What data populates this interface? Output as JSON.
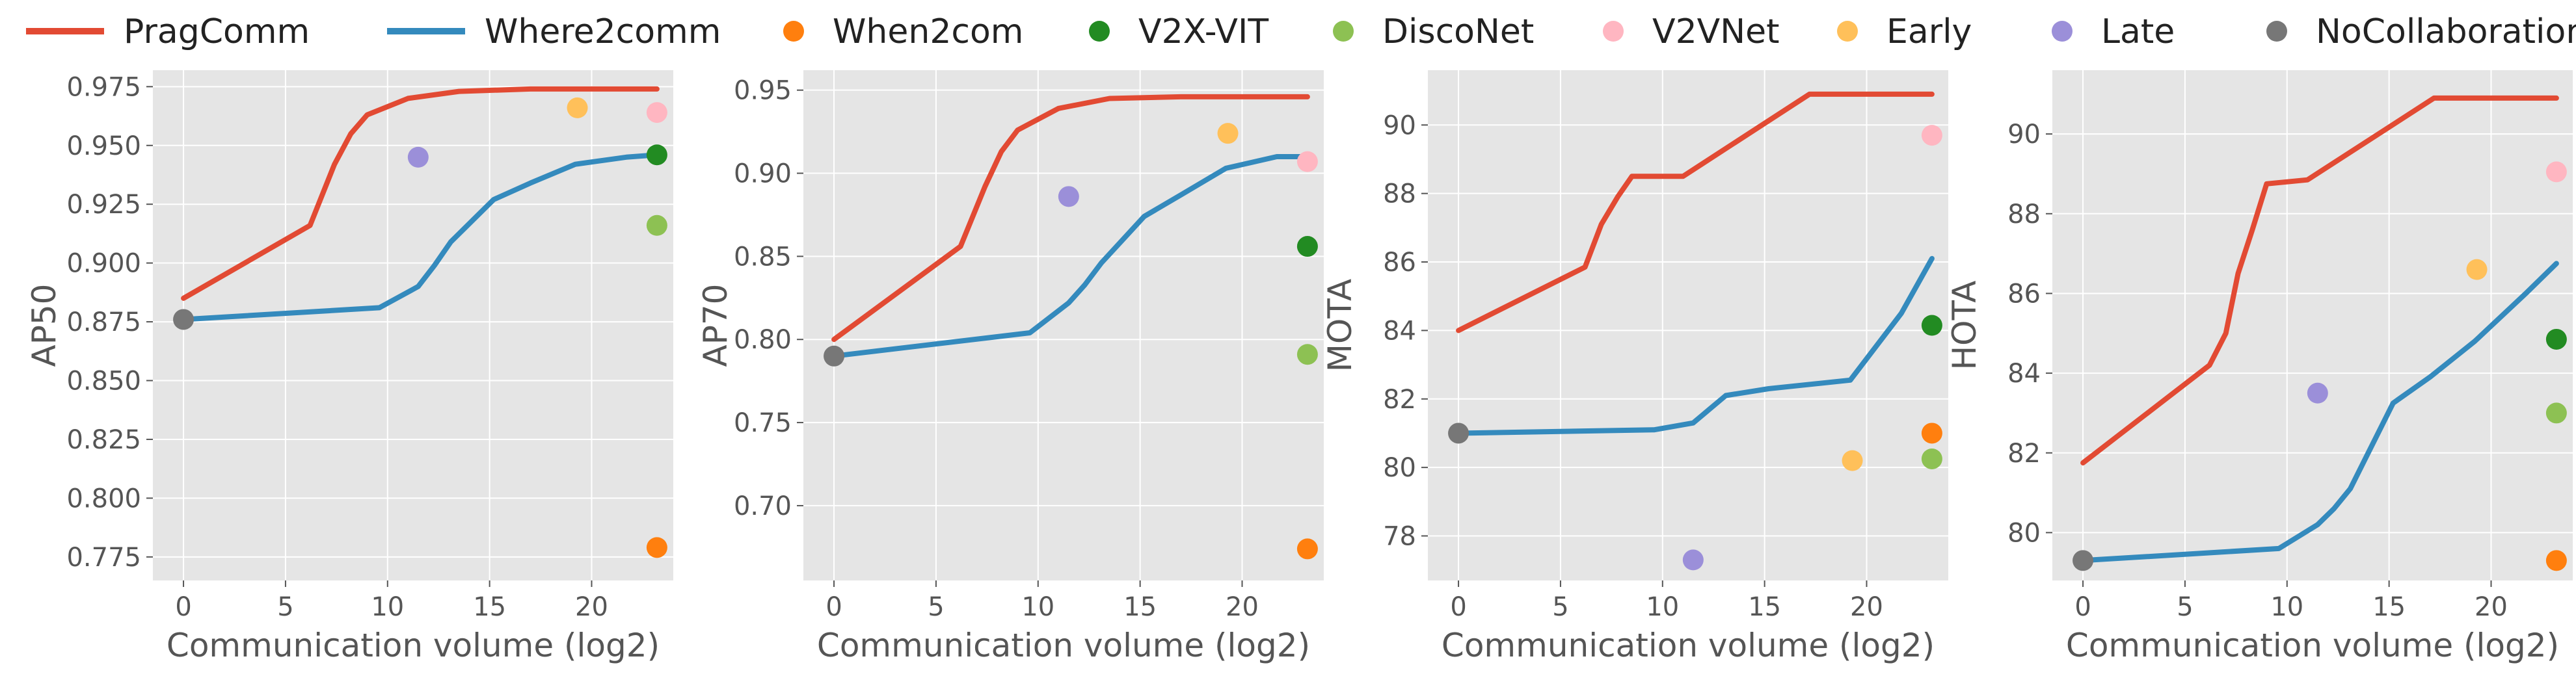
{
  "legend": {
    "placement": "top-center",
    "entries": [
      {
        "name": "PragComm",
        "marker": "line",
        "color": "#E24A33"
      },
      {
        "name": "Where2comm",
        "marker": "line",
        "color": "#348ABD"
      },
      {
        "name": "When2com",
        "marker": "dot",
        "color": "#FF7F0E"
      },
      {
        "name": "V2X-VIT",
        "marker": "dot",
        "color": "#228B22"
      },
      {
        "name": "DiscoNet",
        "marker": "dot",
        "color": "#8DC153"
      },
      {
        "name": "V2VNet",
        "marker": "dot",
        "color": "#FFB6C1"
      },
      {
        "name": "Early",
        "marker": "dot",
        "color": "#FFC05A"
      },
      {
        "name": "Late",
        "marker": "dot",
        "color": "#9B8FD9"
      },
      {
        "name": "NoCollaboration",
        "marker": "dot",
        "color": "#777777"
      }
    ]
  },
  "chart_data": [
    {
      "type": "line",
      "xlabel": "Communication volume (log2)",
      "ylabel": "AP50",
      "xlim": [
        -1.5,
        24
      ],
      "ylim": [
        0.765,
        0.982
      ],
      "xticks": [
        0,
        5,
        10,
        15,
        20
      ],
      "yticks": [
        0.775,
        0.8,
        0.825,
        0.85,
        0.875,
        0.9,
        0.925,
        0.95,
        0.975
      ],
      "ytick_labels": [
        "0.775",
        "0.800",
        "0.825",
        "0.850",
        "0.875",
        "0.900",
        "0.925",
        "0.950",
        "0.975"
      ],
      "grid": true,
      "series": [
        {
          "name": "PragComm",
          "color": "#E24A33",
          "x": [
            0,
            6.2,
            7.4,
            8.2,
            9.0,
            11.0,
            13.5,
            17.0,
            20.0,
            23.2
          ],
          "y": [
            0.885,
            0.916,
            0.942,
            0.955,
            0.963,
            0.97,
            0.973,
            0.974,
            0.974,
            0.974
          ]
        },
        {
          "name": "Where2comm",
          "color": "#348ABD",
          "x": [
            0,
            9.6,
            11.5,
            12.3,
            13.1,
            15.2,
            17.0,
            19.2,
            21.7,
            23.2
          ],
          "y": [
            0.876,
            0.881,
            0.89,
            0.899,
            0.909,
            0.927,
            0.934,
            0.942,
            0.945,
            0.946
          ]
        }
      ],
      "points": [
        {
          "name": "When2com",
          "color": "#FF7F0E",
          "x": 23.2,
          "y": 0.779
        },
        {
          "name": "V2X-VIT",
          "color": "#228B22",
          "x": 23.2,
          "y": 0.946
        },
        {
          "name": "DiscoNet",
          "color": "#8DC153",
          "x": 23.2,
          "y": 0.916
        },
        {
          "name": "V2VNet",
          "color": "#FFB6C1",
          "x": 23.2,
          "y": 0.964
        },
        {
          "name": "Early",
          "color": "#FFC05A",
          "x": 19.3,
          "y": 0.966
        },
        {
          "name": "Late",
          "color": "#9B8FD9",
          "x": 11.5,
          "y": 0.945
        },
        {
          "name": "NoCollaboration",
          "color": "#777777",
          "x": 0,
          "y": 0.876
        }
      ]
    },
    {
      "type": "line",
      "xlabel": "Communication volume (log2)",
      "ylabel": "AP70",
      "xlim": [
        -1.5,
        24
      ],
      "ylim": [
        0.655,
        0.962
      ],
      "xticks": [
        0,
        5,
        10,
        15,
        20
      ],
      "yticks": [
        0.7,
        0.75,
        0.8,
        0.85,
        0.9,
        0.95
      ],
      "ytick_labels": [
        "0.70",
        "0.75",
        "0.80",
        "0.85",
        "0.90",
        "0.95"
      ],
      "grid": true,
      "series": [
        {
          "name": "PragComm",
          "color": "#E24A33",
          "x": [
            0,
            6.2,
            7.4,
            8.2,
            9.0,
            11.0,
            13.5,
            17.0,
            20.0,
            23.2
          ],
          "y": [
            0.8,
            0.856,
            0.892,
            0.913,
            0.926,
            0.939,
            0.945,
            0.946,
            0.946,
            0.946
          ]
        },
        {
          "name": "Where2comm",
          "color": "#348ABD",
          "x": [
            0,
            9.6,
            11.5,
            12.3,
            13.1,
            15.2,
            17.0,
            19.2,
            21.7,
            23.2
          ],
          "y": [
            0.79,
            0.804,
            0.822,
            0.833,
            0.846,
            0.874,
            0.887,
            0.903,
            0.91,
            0.91
          ]
        }
      ],
      "points": [
        {
          "name": "When2com",
          "color": "#FF7F0E",
          "x": 23.2,
          "y": 0.674
        },
        {
          "name": "V2X-VIT",
          "color": "#228B22",
          "x": 23.2,
          "y": 0.856
        },
        {
          "name": "DiscoNet",
          "color": "#8DC153",
          "x": 23.2,
          "y": 0.791
        },
        {
          "name": "V2VNet",
          "color": "#FFB6C1",
          "x": 23.2,
          "y": 0.907
        },
        {
          "name": "Early",
          "color": "#FFC05A",
          "x": 19.3,
          "y": 0.924
        },
        {
          "name": "Late",
          "color": "#9B8FD9",
          "x": 11.5,
          "y": 0.886
        },
        {
          "name": "NoCollaboration",
          "color": "#777777",
          "x": 0,
          "y": 0.79
        }
      ]
    },
    {
      "type": "line",
      "xlabel": "Communication volume (log2)",
      "ylabel": "MOTA",
      "xlim": [
        -1.5,
        24
      ],
      "ylim": [
        76.7,
        91.6
      ],
      "xticks": [
        0,
        5,
        10,
        15,
        20
      ],
      "yticks": [
        78,
        80,
        82,
        84,
        86,
        88,
        90
      ],
      "ytick_labels": [
        "78",
        "80",
        "82",
        "84",
        "86",
        "88",
        "90"
      ],
      "grid": true,
      "series": [
        {
          "name": "PragComm",
          "color": "#E24A33",
          "x": [
            0,
            6.2,
            7.0,
            7.8,
            8.5,
            11.0,
            17.2,
            20.0,
            23.2
          ],
          "y": [
            84.0,
            85.85,
            87.1,
            87.9,
            88.5,
            88.5,
            90.9,
            90.9,
            90.9
          ]
        },
        {
          "name": "Where2comm",
          "color": "#348ABD",
          "x": [
            0,
            9.6,
            11.5,
            12.3,
            13.1,
            15.2,
            19.2,
            21.7,
            23.2
          ],
          "y": [
            81.0,
            81.1,
            81.3,
            81.7,
            82.1,
            82.3,
            82.55,
            84.5,
            86.1
          ]
        }
      ],
      "points": [
        {
          "name": "When2com",
          "color": "#FF7F0E",
          "x": 23.2,
          "y": 81.0
        },
        {
          "name": "V2X-VIT",
          "color": "#228B22",
          "x": 23.2,
          "y": 84.15
        },
        {
          "name": "DiscoNet",
          "color": "#8DC153",
          "x": 23.2,
          "y": 80.25
        },
        {
          "name": "V2VNet",
          "color": "#FFB6C1",
          "x": 23.2,
          "y": 89.7
        },
        {
          "name": "Early",
          "color": "#FFC05A",
          "x": 19.3,
          "y": 80.2
        },
        {
          "name": "Late",
          "color": "#9B8FD9",
          "x": 11.5,
          "y": 77.3
        },
        {
          "name": "NoCollaboration",
          "color": "#777777",
          "x": 0,
          "y": 81.0
        }
      ]
    },
    {
      "type": "line",
      "xlabel": "Communication volume (log2)",
      "ylabel": "HOTA",
      "xlim": [
        -1.5,
        24
      ],
      "ylim": [
        78.8,
        91.6
      ],
      "xticks": [
        0,
        5,
        10,
        15,
        20
      ],
      "yticks": [
        80,
        82,
        84,
        86,
        88,
        90
      ],
      "ytick_labels": [
        "80",
        "82",
        "84",
        "86",
        "88",
        "90"
      ],
      "grid": true,
      "series": [
        {
          "name": "PragComm",
          "color": "#E24A33",
          "x": [
            0,
            6.2,
            7.0,
            7.6,
            8.3,
            9.0,
            11.0,
            17.2,
            20.0,
            23.2
          ],
          "y": [
            81.75,
            84.2,
            85.0,
            86.5,
            87.6,
            88.75,
            88.85,
            90.9,
            90.9,
            90.9
          ]
        },
        {
          "name": "Where2comm",
          "color": "#348ABD",
          "x": [
            0,
            9.6,
            11.5,
            12.3,
            13.1,
            15.2,
            17.0,
            19.2,
            21.7,
            23.2
          ],
          "y": [
            79.3,
            79.6,
            80.2,
            80.6,
            81.1,
            83.25,
            83.9,
            84.8,
            86.0,
            86.75
          ]
        }
      ],
      "points": [
        {
          "name": "When2com",
          "color": "#FF7F0E",
          "x": 23.2,
          "y": 79.3
        },
        {
          "name": "V2X-VIT",
          "color": "#228B22",
          "x": 23.2,
          "y": 84.85
        },
        {
          "name": "DiscoNet",
          "color": "#8DC153",
          "x": 23.2,
          "y": 83.0
        },
        {
          "name": "V2VNet",
          "color": "#FFB6C1",
          "x": 23.2,
          "y": 89.05
        },
        {
          "name": "Early",
          "color": "#FFC05A",
          "x": 19.3,
          "y": 86.6
        },
        {
          "name": "Late",
          "color": "#9B8FD9",
          "x": 11.5,
          "y": 83.5
        },
        {
          "name": "NoCollaboration",
          "color": "#777777",
          "x": 0,
          "y": 79.3
        }
      ]
    }
  ]
}
